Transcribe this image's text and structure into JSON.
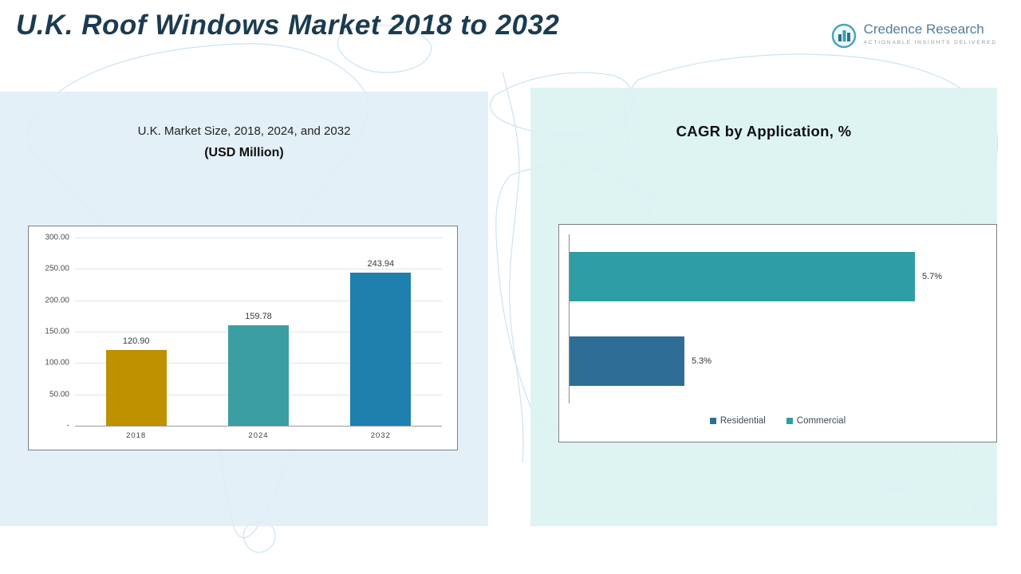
{
  "page": {
    "title": "U.K. Roof Windows Market 2018 to 2032"
  },
  "logo": {
    "name": "Credence Research",
    "tagline": "Actionable Insights Delivered"
  },
  "panels": {
    "market_size": {
      "title_line1": "U.K. Market Size, 2018, 2024, and 2032",
      "title_line2": "(USD Million)"
    },
    "cagr": {
      "title": "CAGR by Application, %"
    }
  },
  "chart_data": [
    {
      "type": "bar",
      "title": "U.K. Market Size, 2018, 2024, and 2032 (USD Million)",
      "categories": [
        "2018",
        "2024",
        "2032"
      ],
      "values": [
        120.9,
        159.78,
        243.94
      ],
      "value_labels": [
        "120.90",
        "159.78",
        "243.94"
      ],
      "bar_colors": [
        "#BF9000",
        "#3B9EA3",
        "#1F7FAD"
      ],
      "ylim": [
        0,
        300
      ],
      "yticks": [
        {
          "value": 300,
          "label": "300.00"
        },
        {
          "value": 250,
          "label": "250.00"
        },
        {
          "value": 200,
          "label": "200.00"
        },
        {
          "value": 150,
          "label": "150.00"
        },
        {
          "value": 100,
          "label": "100.00"
        },
        {
          "value": 50,
          "label": "50.00"
        },
        {
          "value": 0,
          "label": "-"
        }
      ],
      "grid": true,
      "legend": "none"
    },
    {
      "type": "bar",
      "orientation": "horizontal",
      "title": "CAGR by Application, %",
      "series": [
        {
          "name": "Commercial",
          "value": 5.7,
          "label": "5.7%",
          "color": "#2F9EA4"
        },
        {
          "name": "Residential",
          "value": 5.3,
          "label": "5.3%",
          "color": "#2E6E96"
        }
      ],
      "xlim": [
        5.1,
        5.8
      ],
      "legend": [
        {
          "label": "Residential",
          "color": "#2E6E96"
        },
        {
          "label": "Commercial",
          "color": "#2F9EA4"
        }
      ],
      "legend_position": "bottom"
    }
  ]
}
